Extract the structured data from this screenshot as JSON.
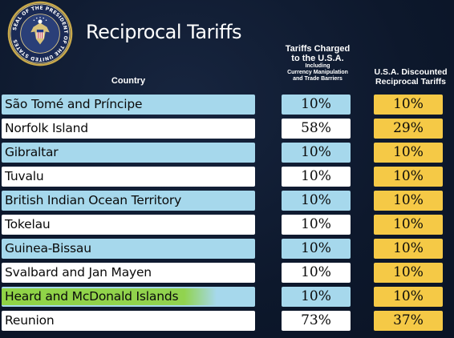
{
  "title": "Reciprocal Tariffs",
  "seal": {
    "text_top": "SEAL OF THE PRESIDENT OF THE UNITED STATES",
    "icon": "presidential-seal-icon"
  },
  "headers": {
    "country": "Country",
    "charged_line1": "Tariffs Charged",
    "charged_line2": "to the U.S.A.",
    "charged_sub1": "Including",
    "charged_sub2": "Currency Manipulation",
    "charged_sub3": "and Trade Barriers",
    "discount_line1": "U.S.A. Discounted",
    "discount_line2": "Reciprocal Tariffs"
  },
  "colors": {
    "background": "#0e1a30",
    "row_blue": "#a6d8ec",
    "row_white": "#ffffff",
    "discount_cell": "#f5c946",
    "highlighter": "#8cd228"
  },
  "rows": [
    {
      "country": "São Tomé and Príncipe",
      "charged": "10%",
      "discounted": "10%",
      "style": "blue"
    },
    {
      "country": "Norfolk Island",
      "charged": "58%",
      "discounted": "29%",
      "style": "white"
    },
    {
      "country": "Gibraltar",
      "charged": "10%",
      "discounted": "10%",
      "style": "blue"
    },
    {
      "country": "Tuvalu",
      "charged": "10%",
      "discounted": "10%",
      "style": "white"
    },
    {
      "country": "British Indian Ocean Territory",
      "charged": "10%",
      "discounted": "10%",
      "style": "blue"
    },
    {
      "country": "Tokelau",
      "charged": "10%",
      "discounted": "10%",
      "style": "white"
    },
    {
      "country": "Guinea-Bissau",
      "charged": "10%",
      "discounted": "10%",
      "style": "blue"
    },
    {
      "country": "Svalbard and Jan Mayen",
      "charged": "10%",
      "discounted": "10%",
      "style": "white"
    },
    {
      "country": "Heard and McDonald Islands",
      "charged": "10%",
      "discounted": "10%",
      "style": "blue",
      "highlighted": true
    },
    {
      "country": "Reunion",
      "charged": "73%",
      "discounted": "37%",
      "style": "white"
    }
  ]
}
